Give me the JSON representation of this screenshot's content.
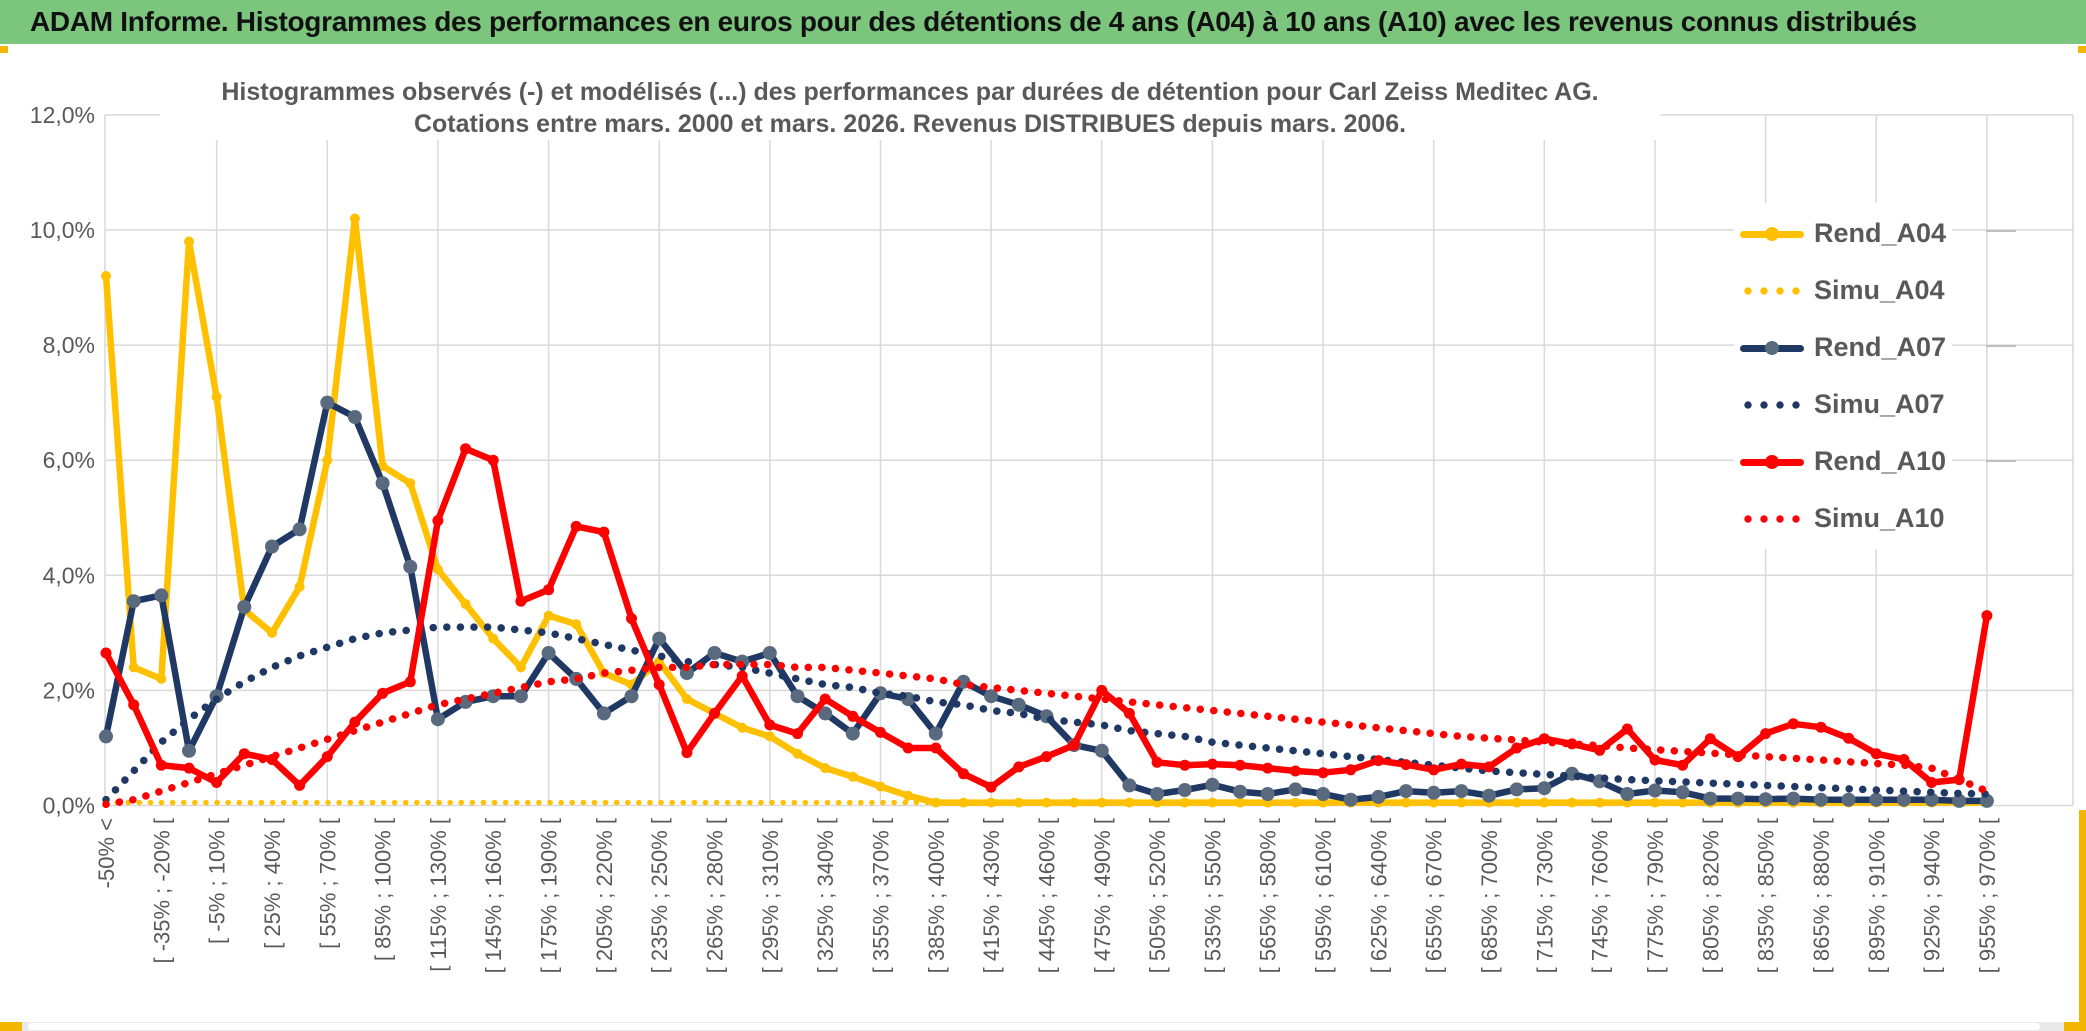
{
  "header": {
    "title": "ADAM Informe. Histogrammes des performances en euros pour des détentions de 4 ans (A04) à 10 ans (A10) avec les revenus connus distribués"
  },
  "colors": {
    "header_green": "#7CC57D",
    "grid": "#D9D9D9",
    "axis_text": "#595959",
    "gold": "#FFC000",
    "navy": "#1F3864",
    "navy_marker": "#5A6A7E",
    "red": "#FF0000",
    "amber_edge": "#F2B600"
  },
  "chart_data": {
    "type": "line",
    "title_line1": "Histogrammes observés (-) et modélisés (...) des performances par durées de détention pour Carl Zeiss Meditec AG.",
    "title_line2": "Cotations entre mars. 2000 et mars. 2026. Revenus DISTRIBUES depuis mars. 2006.",
    "legend_position": "right",
    "grid": true,
    "n_categories": 69,
    "y_axis": {
      "min": 0,
      "max": 12,
      "ticks": [
        "12,0%",
        "10,0%",
        "8,0%",
        "6,0%",
        "4,0%",
        "2,0%",
        "0,0%"
      ]
    },
    "x_tick_labels": [
      "-50% <",
      "[ -35% ; -20% [",
      "[ -5% ; 10% [",
      "[ 25% ; 40% [",
      "[ 55% ; 70% [",
      "[ 85% ; 100% [",
      "[ 115% ; 130% [",
      "[ 145% ; 160% [",
      "[ 175% ; 190% [",
      "[ 205% ; 220% [",
      "[ 235% ; 250% [",
      "[ 265% ; 280% [",
      "[ 295% ; 310% [",
      "[ 325% ; 340% [",
      "[ 355% ; 370% [",
      "[ 385% ; 400% [",
      "[ 415% ; 430% [",
      "[ 445% ; 460% [",
      "[ 475% ; 490% [",
      "[ 505% ; 520% [",
      "[ 535% ; 550% [",
      "[ 565% ; 580% [",
      "[ 595% ; 610% [",
      "[ 625% ; 640% [",
      "[ 655% ; 670% [",
      "[ 685% ; 700% [",
      "[ 715% ; 730% [",
      "[ 745% ; 760% [",
      "[ 775% ; 790% [",
      "[ 805% ; 820% [",
      "[ 835% ; 850% [",
      "[ 865% ; 880% [",
      "[ 895% ; 910% [",
      "[ 925% ; 940% [",
      "[ 955% ; 970% ["
    ],
    "series": [
      {
        "name": "Rend_A04",
        "style": "solid",
        "color": "#FFC000",
        "marker": "#FFC000",
        "marker_r": 5,
        "values": [
          9.2,
          2.4,
          2.2,
          9.8,
          7.1,
          3.4,
          3.0,
          3.8,
          6.0,
          10.2,
          5.9,
          5.6,
          4.1,
          3.5,
          2.9,
          2.4,
          3.3,
          3.15,
          2.3,
          2.1,
          2.5,
          1.85,
          1.6,
          1.35,
          1.2,
          0.9,
          0.65,
          0.5,
          0.33,
          0.17,
          0.05,
          0.05,
          0.05,
          0.05,
          0.05,
          0.05,
          0.05,
          0.05,
          0.05,
          0.05,
          0.05,
          0.05,
          0.05,
          0.05,
          0.05,
          0.05,
          0.05,
          0.05,
          0.05,
          0.05,
          0.05,
          0.05,
          0.05,
          0.05,
          0.05,
          0.05,
          0.05,
          0.05,
          0.05,
          0.05,
          0.05,
          0.05,
          0.05,
          0.05,
          0.05,
          0.05,
          0.05,
          0.05,
          0.05
        ]
      },
      {
        "name": "Simu_A04",
        "style": "dotted",
        "color": "#FFC000",
        "marker": "#FFC000",
        "marker_r": 0,
        "values": [
          0.05,
          0.05,
          0.05,
          0.05,
          0.05,
          0.05,
          0.05,
          0.05,
          0.05,
          0.05,
          0.05,
          0.05,
          0.05,
          0.05,
          0.05,
          0.05,
          0.05,
          0.05,
          0.05,
          0.05,
          0.05,
          0.05,
          0.05,
          0.05,
          0.05,
          0.05,
          0.05,
          0.05,
          0.05,
          0.05,
          0.05,
          0.05,
          0.05,
          0.05,
          0.05,
          0.05,
          0.05,
          0.05,
          0.05,
          0.05,
          0.05,
          0.05,
          0.05,
          0.05,
          0.05,
          0.05,
          0.05,
          0.05,
          0.05,
          0.05,
          0.05,
          0.05,
          0.05,
          0.05,
          0.05,
          0.05,
          0.05,
          0.05,
          0.05,
          0.05,
          0.05,
          0.05,
          0.05,
          0.05,
          0.05,
          0.05,
          0.05,
          0.05,
          0.05
        ]
      },
      {
        "name": "Rend_A07",
        "style": "solid",
        "color": "#1F3864",
        "marker": "#5A6A7E",
        "marker_r": 7,
        "values": [
          1.2,
          3.55,
          3.65,
          0.95,
          1.9,
          3.45,
          4.5,
          4.8,
          7.0,
          6.75,
          5.6,
          4.15,
          1.5,
          1.8,
          1.9,
          1.9,
          2.65,
          2.2,
          1.6,
          1.9,
          2.9,
          2.3,
          2.65,
          2.5,
          2.65,
          1.9,
          1.6,
          1.25,
          1.95,
          1.85,
          1.25,
          2.15,
          1.9,
          1.75,
          1.55,
          1.05,
          0.95,
          0.35,
          0.2,
          0.27,
          0.36,
          0.24,
          0.2,
          0.28,
          0.2,
          0.1,
          0.15,
          0.25,
          0.22,
          0.25,
          0.17,
          0.28,
          0.3,
          0.55,
          0.42,
          0.2,
          0.26,
          0.23,
          0.12,
          0.12,
          0.11,
          0.12,
          0.1,
          0.1,
          0.1,
          0.1,
          0.1,
          0.08,
          0.08
        ]
      },
      {
        "name": "Simu_A07",
        "style": "dotted",
        "color": "#1F3864",
        "marker": "#1F3864",
        "marker_r": 0,
        "values": [
          0.1,
          0.6,
          1.1,
          1.5,
          1.85,
          2.15,
          2.4,
          2.6,
          2.75,
          2.9,
          3.0,
          3.05,
          3.1,
          3.1,
          3.1,
          3.05,
          3.0,
          2.9,
          2.8,
          2.7,
          2.6,
          2.5,
          2.45,
          2.4,
          2.3,
          2.2,
          2.1,
          2.05,
          1.95,
          1.9,
          1.8,
          1.75,
          1.65,
          1.6,
          1.5,
          1.45,
          1.4,
          1.3,
          1.25,
          1.2,
          1.1,
          1.05,
          1.0,
          0.95,
          0.9,
          0.85,
          0.8,
          0.75,
          0.7,
          0.65,
          0.6,
          0.57,
          0.54,
          0.51,
          0.48,
          0.45,
          0.43,
          0.41,
          0.39,
          0.37,
          0.35,
          0.33,
          0.31,
          0.29,
          0.27,
          0.25,
          0.23,
          0.21,
          0.2
        ]
      },
      {
        "name": "Rend_A10",
        "style": "solid",
        "color": "#FF0000",
        "marker": "#FF0000",
        "marker_r": 5.5,
        "values": [
          2.65,
          1.75,
          0.7,
          0.65,
          0.4,
          0.9,
          0.8,
          0.35,
          0.85,
          1.45,
          1.95,
          2.15,
          4.95,
          6.2,
          6.0,
          3.55,
          3.75,
          4.85,
          4.75,
          3.25,
          2.1,
          0.92,
          1.6,
          2.25,
          1.4,
          1.25,
          1.85,
          1.55,
          1.27,
          1.0,
          1.0,
          0.55,
          0.32,
          0.67,
          0.85,
          1.05,
          2.0,
          1.6,
          0.75,
          0.7,
          0.72,
          0.7,
          0.65,
          0.6,
          0.57,
          0.62,
          0.78,
          0.71,
          0.62,
          0.72,
          0.67,
          1.0,
          1.16,
          1.07,
          0.96,
          1.33,
          0.79,
          0.7,
          1.16,
          0.85,
          1.25,
          1.42,
          1.36,
          1.17,
          0.9,
          0.8,
          0.4,
          0.45,
          3.3
        ]
      },
      {
        "name": "Simu_A10",
        "style": "dotted",
        "color": "#FF0000",
        "marker": "#FF0000",
        "marker_r": 0,
        "values": [
          0.02,
          0.1,
          0.25,
          0.4,
          0.55,
          0.7,
          0.85,
          1.0,
          1.15,
          1.3,
          1.45,
          1.6,
          1.75,
          1.85,
          1.95,
          2.05,
          2.15,
          2.2,
          2.3,
          2.35,
          2.4,
          2.4,
          2.45,
          2.45,
          2.45,
          2.4,
          2.4,
          2.35,
          2.3,
          2.25,
          2.2,
          2.1,
          2.05,
          2.0,
          1.95,
          1.9,
          1.85,
          1.8,
          1.75,
          1.7,
          1.65,
          1.6,
          1.55,
          1.5,
          1.45,
          1.4,
          1.35,
          1.3,
          1.25,
          1.2,
          1.17,
          1.14,
          1.1,
          1.07,
          1.04,
          1.0,
          0.97,
          0.94,
          0.91,
          0.88,
          0.85,
          0.82,
          0.79,
          0.76,
          0.73,
          0.7,
          0.65,
          0.45,
          0.25
        ]
      }
    ]
  }
}
